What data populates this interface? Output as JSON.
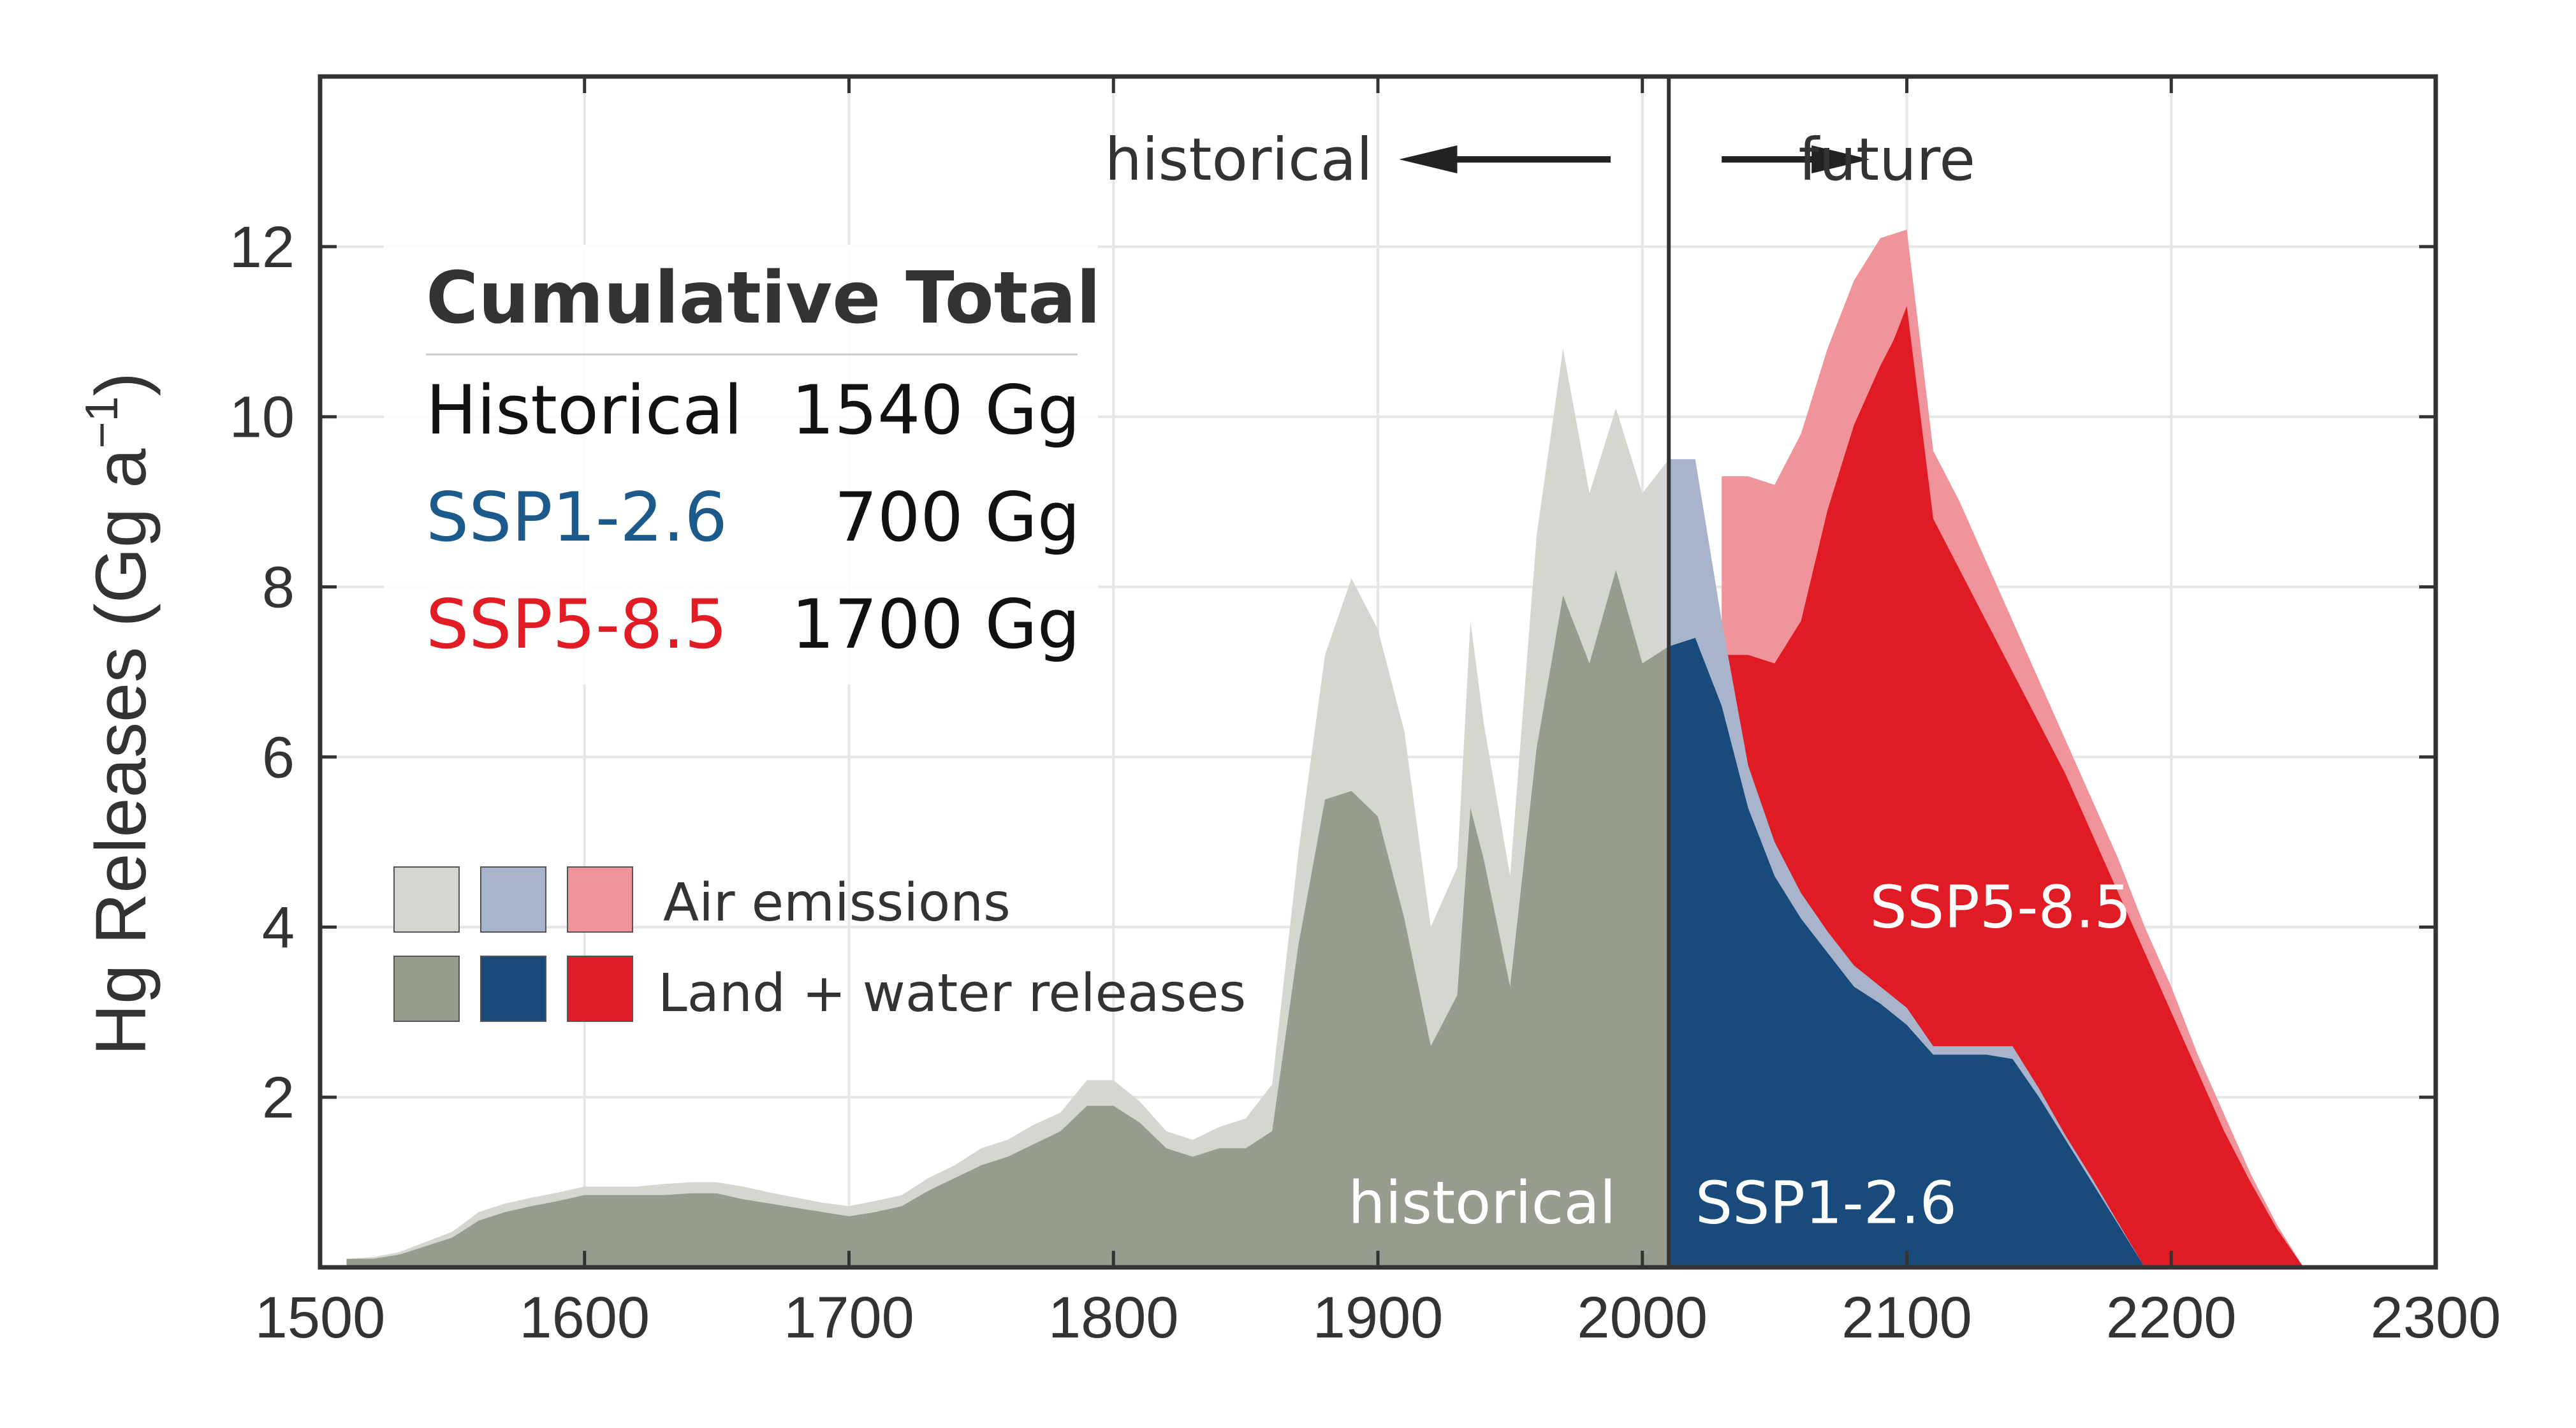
{
  "chart_data": {
    "type": "area",
    "ylabel": "Hg Releases (Gg a",
    "ylabel_sup": "−1",
    "ylabel_close": ")",
    "xlim": [
      1500,
      2300
    ],
    "ylim": [
      0,
      14
    ],
    "x_ticks": [
      1500,
      1600,
      1700,
      1800,
      1900,
      2000,
      2100,
      2200,
      2300
    ],
    "y_ticks": [
      2,
      4,
      6,
      8,
      10,
      12
    ],
    "grid": true,
    "divider_x": 2010,
    "annotations": {
      "historical_arrow": "historical",
      "future_arrow": "future",
      "label_historical": "historical",
      "label_ssp126": "SSP1-2.6",
      "label_ssp585": "SSP5-8.5"
    },
    "cumulative_total": {
      "title": "Cumulative Total",
      "rows": [
        {
          "name": "Historical",
          "value": "1540 Gg",
          "color": "#111111"
        },
        {
          "name": "SSP1-2.6",
          "value": "700 Gg",
          "color": "#1d5a8c"
        },
        {
          "name": "SSP5-8.5",
          "value": "1700 Gg",
          "color": "#e21c25"
        }
      ]
    },
    "legend": {
      "air_label": "Air emissions",
      "land_label": "Land + water releases",
      "air_colors": [
        "#d4d7d0",
        "#a8b4cc",
        "#f0939a"
      ],
      "land_colors": [
        "#979d8e",
        "#184b7b",
        "#e01b24"
      ]
    },
    "series": [
      {
        "name": "historical",
        "air_color": "#d4d7d0",
        "land_color": "#979d8e",
        "x": [
          1510,
          1520,
          1530,
          1540,
          1550,
          1560,
          1570,
          1580,
          1590,
          1600,
          1610,
          1620,
          1630,
          1640,
          1650,
          1660,
          1670,
          1680,
          1690,
          1700,
          1710,
          1720,
          1730,
          1740,
          1750,
          1760,
          1770,
          1780,
          1790,
          1800,
          1810,
          1820,
          1830,
          1840,
          1850,
          1860,
          1870,
          1880,
          1890,
          1900,
          1910,
          1920,
          1930,
          1935,
          1940,
          1950,
          1960,
          1970,
          1980,
          1990,
          2000,
          2010
        ],
        "land": [
          0.1,
          0.1,
          0.15,
          0.25,
          0.35,
          0.55,
          0.65,
          0.72,
          0.78,
          0.85,
          0.85,
          0.85,
          0.85,
          0.87,
          0.87,
          0.8,
          0.75,
          0.7,
          0.65,
          0.6,
          0.65,
          0.72,
          0.9,
          1.05,
          1.2,
          1.3,
          1.45,
          1.6,
          1.9,
          1.9,
          1.7,
          1.4,
          1.3,
          1.4,
          1.4,
          1.6,
          3.8,
          5.5,
          5.6,
          5.3,
          4.1,
          2.6,
          3.2,
          5.4,
          4.8,
          3.3,
          6.1,
          7.9,
          7.1,
          8.2,
          7.1,
          7.3
        ],
        "total": [
          0.1,
          0.12,
          0.18,
          0.3,
          0.42,
          0.65,
          0.75,
          0.82,
          0.88,
          0.95,
          0.95,
          0.95,
          0.98,
          1.0,
          1.0,
          0.95,
          0.88,
          0.82,
          0.76,
          0.72,
          0.78,
          0.85,
          1.05,
          1.2,
          1.4,
          1.5,
          1.68,
          1.82,
          2.2,
          2.2,
          1.95,
          1.6,
          1.5,
          1.65,
          1.75,
          2.15,
          4.9,
          7.2,
          8.1,
          7.5,
          6.3,
          4.0,
          4.7,
          7.6,
          6.4,
          4.6,
          8.6,
          10.8,
          9.1,
          10.1,
          9.1,
          9.5
        ]
      },
      {
        "name": "SSP1-2.6",
        "air_color": "#a8b4cc",
        "land_color": "#184b7b",
        "x": [
          2010,
          2020,
          2030,
          2040,
          2050,
          2060,
          2070,
          2080,
          2090,
          2100,
          2110,
          2120,
          2130,
          2140,
          2150,
          2160,
          2170,
          2180,
          2190
        ],
        "land": [
          7.3,
          7.4,
          6.6,
          5.4,
          4.6,
          4.1,
          3.7,
          3.3,
          3.1,
          2.85,
          2.5,
          2.5,
          2.5,
          2.45,
          2.0,
          1.5,
          1.0,
          0.5,
          0.0
        ],
        "total": [
          9.5,
          9.5,
          7.6,
          5.9,
          5.0,
          4.4,
          3.95,
          3.55,
          3.3,
          3.05,
          2.6,
          2.6,
          2.6,
          2.6,
          2.1,
          1.55,
          1.05,
          0.52,
          0.0
        ]
      },
      {
        "name": "SSP5-8.5",
        "air_color": "#f0939a",
        "land_color": "#e01b24",
        "x": [
          2030,
          2040,
          2050,
          2060,
          2070,
          2080,
          2090,
          2095,
          2100,
          2110,
          2120,
          2130,
          2140,
          2150,
          2160,
          2170,
          2180,
          2190,
          2200,
          2210,
          2220,
          2230,
          2240,
          2250
        ],
        "land": [
          7.2,
          7.2,
          7.1,
          7.6,
          8.9,
          9.9,
          10.6,
          10.9,
          11.3,
          8.8,
          8.2,
          7.6,
          7.0,
          6.4,
          5.8,
          5.1,
          4.4,
          3.7,
          3.0,
          2.3,
          1.6,
          1.0,
          0.45,
          0.0
        ],
        "total": [
          9.3,
          9.3,
          9.2,
          9.8,
          10.8,
          11.6,
          12.1,
          12.15,
          12.2,
          9.6,
          9.0,
          8.3,
          7.6,
          6.9,
          6.2,
          5.5,
          4.8,
          4.0,
          3.3,
          2.5,
          1.8,
          1.1,
          0.5,
          0.0
        ]
      }
    ]
  }
}
